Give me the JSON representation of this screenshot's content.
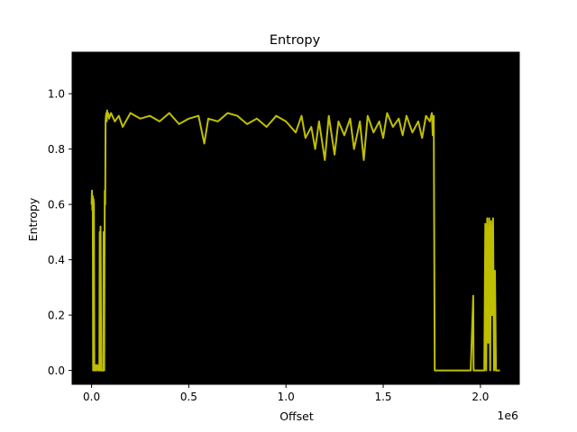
{
  "chart_data": {
    "type": "line",
    "title": "Entropy",
    "xlabel": "Offset",
    "ylabel": "Entropy",
    "x_offset_label": "1e6",
    "xlim": [
      -0.1,
      2.2
    ],
    "ylim": [
      -0.05,
      1.15
    ],
    "x_ticks": [
      0.0,
      0.5,
      1.0,
      1.5,
      2.0
    ],
    "x_tick_labels": [
      "0.0",
      "0.5",
      "1.0",
      "1.5",
      "2.0"
    ],
    "y_ticks": [
      0.0,
      0.2,
      0.4,
      0.6,
      0.8,
      1.0
    ],
    "y_tick_labels": [
      "0.0",
      "0.2",
      "0.4",
      "0.6",
      "0.8",
      "1.0"
    ],
    "plot_background": "#000000",
    "line_color": "#bfbf00",
    "grid": false,
    "series": [
      {
        "name": "Entropy",
        "x": [
          0.0,
          0.002,
          0.004,
          0.006,
          0.008,
          0.01,
          0.012,
          0.014,
          0.016,
          0.018,
          0.02,
          0.022,
          0.025,
          0.03,
          0.035,
          0.04,
          0.042,
          0.044,
          0.046,
          0.05,
          0.055,
          0.06,
          0.062,
          0.065,
          0.068,
          0.07,
          0.072,
          0.074,
          0.076,
          0.078,
          0.08,
          0.082,
          0.085,
          0.09,
          0.1,
          0.12,
          0.14,
          0.16,
          0.2,
          0.25,
          0.3,
          0.35,
          0.4,
          0.45,
          0.5,
          0.55,
          0.58,
          0.6,
          0.65,
          0.7,
          0.75,
          0.8,
          0.85,
          0.9,
          0.95,
          1.0,
          1.05,
          1.08,
          1.1,
          1.13,
          1.15,
          1.17,
          1.2,
          1.22,
          1.25,
          1.27,
          1.3,
          1.33,
          1.35,
          1.38,
          1.4,
          1.42,
          1.45,
          1.48,
          1.5,
          1.52,
          1.55,
          1.58,
          1.6,
          1.62,
          1.65,
          1.68,
          1.7,
          1.72,
          1.74,
          1.75,
          1.755,
          1.76,
          1.765,
          1.77,
          1.8,
          1.85,
          1.9,
          1.95,
          1.963,
          1.965,
          1.967,
          2.0,
          2.02,
          2.025,
          2.03,
          2.035,
          2.04,
          2.045,
          2.05,
          2.055,
          2.06,
          2.065,
          2.07,
          2.075,
          2.08,
          2.1
        ],
        "values": [
          0.6,
          0.65,
          0.58,
          0.63,
          0.0,
          0.62,
          0.6,
          0.0,
          0.02,
          0.0,
          0.02,
          0.0,
          0.0,
          0.02,
          0.0,
          0.0,
          0.5,
          0.0,
          0.52,
          0.0,
          0.0,
          0.0,
          0.5,
          0.0,
          0.65,
          0.6,
          0.9,
          0.92,
          0.93,
          0.9,
          0.94,
          0.92,
          0.93,
          0.91,
          0.93,
          0.9,
          0.92,
          0.88,
          0.93,
          0.91,
          0.92,
          0.9,
          0.93,
          0.89,
          0.91,
          0.92,
          0.82,
          0.91,
          0.9,
          0.93,
          0.92,
          0.89,
          0.91,
          0.88,
          0.92,
          0.9,
          0.86,
          0.92,
          0.84,
          0.88,
          0.8,
          0.9,
          0.76,
          0.92,
          0.78,
          0.9,
          0.85,
          0.91,
          0.8,
          0.9,
          0.76,
          0.92,
          0.86,
          0.9,
          0.84,
          0.93,
          0.88,
          0.91,
          0.85,
          0.92,
          0.86,
          0.9,
          0.84,
          0.92,
          0.9,
          0.93,
          0.85,
          0.92,
          0.0,
          0.0,
          0.0,
          0.0,
          0.0,
          0.0,
          0.27,
          0.0,
          0.0,
          0.0,
          0.0,
          0.53,
          0.0,
          0.55,
          0.1,
          0.55,
          0.0,
          0.54,
          0.2,
          0.55,
          0.0,
          0.36,
          0.0,
          0.0
        ]
      }
    ]
  }
}
